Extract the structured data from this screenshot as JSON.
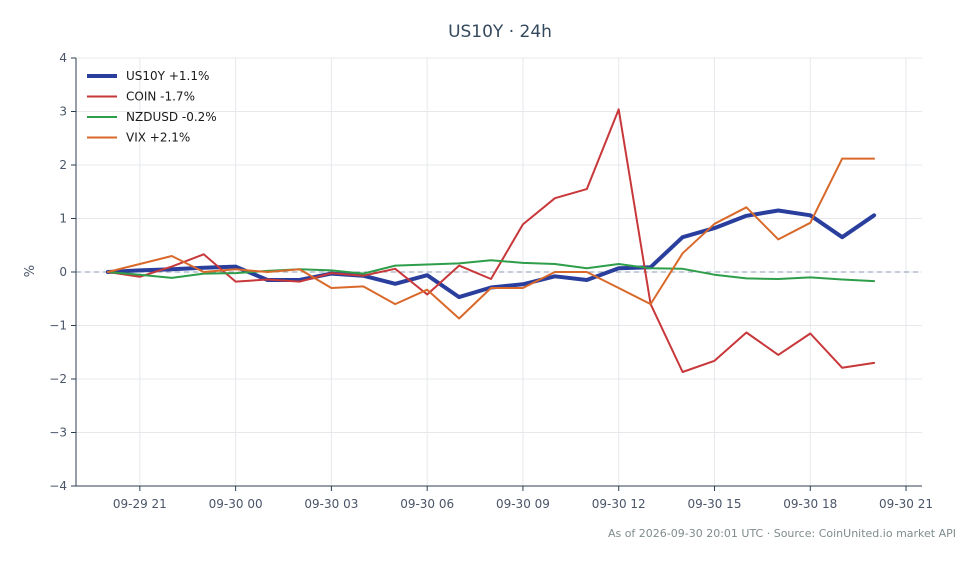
{
  "chart_data": {
    "type": "line",
    "title": "US10Y · 24h",
    "ylabel": "%",
    "xlabel": "",
    "ylim": [
      -4,
      4
    ],
    "yticks": [
      4,
      3,
      2,
      1,
      0,
      -1,
      -2,
      -3,
      -4
    ],
    "ytick_labels": [
      "4",
      "3",
      "2",
      "1",
      "0",
      "−1",
      "−2",
      "−3",
      "−4"
    ],
    "x_start": "2026-09-29 20:00",
    "x_end_limit": "2026-09-30 21:30",
    "xtick_labels": [
      "09-29 21",
      "09-30 00",
      "09-30 03",
      "09-30 06",
      "09-30 09",
      "09-30 12",
      "09-30 15",
      "09-30 18",
      "09-30 21"
    ],
    "xtick_times": [
      "2026-09-29 21:00",
      "2026-09-30 00:00",
      "2026-09-30 03:00",
      "2026-09-30 06:00",
      "2026-09-30 09:00",
      "2026-09-30 12:00",
      "2026-09-30 15:00",
      "2026-09-30 18:00",
      "2026-09-30 21:00"
    ],
    "x": [
      "2026-09-29 20:00",
      "2026-09-29 21:00",
      "2026-09-29 22:00",
      "2026-09-29 23:00",
      "2026-09-30 00:00",
      "2026-09-30 01:00",
      "2026-09-30 02:00",
      "2026-09-30 03:00",
      "2026-09-30 04:00",
      "2026-09-30 05:00",
      "2026-09-30 06:00",
      "2026-09-30 07:00",
      "2026-09-30 08:00",
      "2026-09-30 09:00",
      "2026-09-30 10:00",
      "2026-09-30 11:00",
      "2026-09-30 12:00",
      "2026-09-30 13:00",
      "2026-09-30 14:00",
      "2026-09-30 15:00",
      "2026-09-30 16:00",
      "2026-09-30 17:00",
      "2026-09-30 18:00",
      "2026-09-30 19:00",
      "2026-09-30 20:00"
    ],
    "grid": true,
    "legend_position": "top-left",
    "series": [
      {
        "name": "US10Y +1.1%",
        "color": "#2a3f9d",
        "width": 4,
        "values": [
          0.0,
          0.03,
          0.05,
          0.08,
          0.1,
          -0.15,
          -0.15,
          -0.03,
          -0.07,
          -0.22,
          -0.06,
          -0.47,
          -0.29,
          -0.23,
          -0.08,
          -0.15,
          0.07,
          0.09,
          0.65,
          0.82,
          1.05,
          1.15,
          1.06,
          0.65,
          1.06
        ]
      },
      {
        "name": "COIN -1.7%",
        "color": "#c8373a",
        "width": 2,
        "values": [
          0.0,
          -0.09,
          0.1,
          0.33,
          -0.18,
          -0.14,
          -0.18,
          -0.02,
          -0.07,
          0.06,
          -0.42,
          0.12,
          -0.13,
          0.89,
          1.38,
          1.55,
          3.04,
          -0.6,
          -1.87,
          -1.66,
          -1.13,
          -1.55,
          -1.15,
          -1.79,
          -1.7
        ]
      },
      {
        "name": "NZDUSD -0.2%",
        "color": "#2e9e4a",
        "width": 2,
        "values": [
          0.0,
          -0.05,
          -0.11,
          -0.03,
          -0.02,
          0.02,
          0.05,
          0.03,
          -0.03,
          0.12,
          0.14,
          0.16,
          0.22,
          0.17,
          0.15,
          0.07,
          0.15,
          0.07,
          0.06,
          -0.05,
          -0.12,
          -0.13,
          -0.1,
          -0.14,
          -0.17
        ]
      },
      {
        "name": "VIX +2.1%",
        "color": "#d9692a",
        "width": 2,
        "values": [
          0.0,
          0.15,
          0.3,
          0.0,
          0.05,
          0.0,
          0.05,
          -0.3,
          -0.27,
          -0.6,
          -0.33,
          -0.87,
          -0.3,
          -0.3,
          0.0,
          0.0,
          -0.3,
          -0.6,
          0.35,
          0.9,
          1.21,
          0.61,
          0.92,
          2.12,
          2.12
        ]
      }
    ]
  },
  "footer": "As of 2026-09-30 20:01 UTC · Source: CoinUnited.io market API"
}
